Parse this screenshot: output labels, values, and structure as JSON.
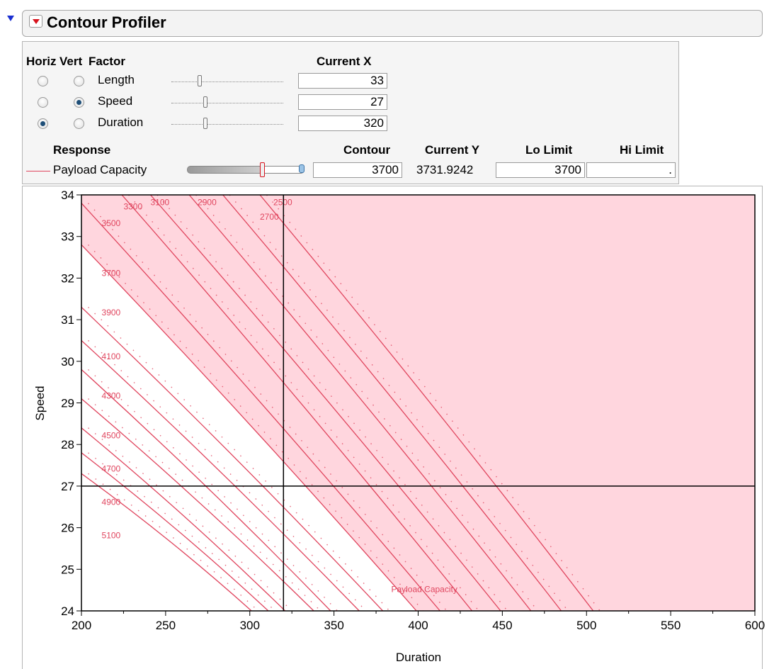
{
  "title": "Contour Profiler",
  "factor_headers": {
    "horiz": "Horiz",
    "vert": "Vert",
    "factor": "Factor",
    "current_x": "Current X"
  },
  "factors": [
    {
      "name": "Length",
      "horiz": false,
      "vert": false,
      "current_x": "33",
      "slider_pos": 0.25
    },
    {
      "name": "Speed",
      "horiz": false,
      "vert": true,
      "current_x": "27",
      "slider_pos": 0.3
    },
    {
      "name": "Duration",
      "horiz": true,
      "vert": false,
      "current_x": "320",
      "slider_pos": 0.3
    }
  ],
  "response_headers": {
    "response": "Response",
    "contour": "Contour",
    "current_y": "Current Y",
    "lo_limit": "Lo Limit",
    "hi_limit": "Hi Limit"
  },
  "response": {
    "name": "Payload Capacity",
    "contour": "3700",
    "current_y": "3731.9242",
    "lo_limit": "3700",
    "hi_limit": ".",
    "slider_pos": 0.67
  },
  "colors": {
    "contour": "#e0455e",
    "shade": "#ffd6de",
    "crosshair": "#000000"
  },
  "icons": {
    "disclosure": "disclosure-triangle-icon",
    "menu": "red-triangle-menu-icon"
  },
  "chart_data": {
    "type": "contour",
    "xlabel": "Duration",
    "ylabel": "Speed",
    "xlim": [
      200,
      600
    ],
    "ylim": [
      24,
      34
    ],
    "xticks": [
      200,
      250,
      300,
      350,
      400,
      450,
      500,
      550,
      600
    ],
    "yticks": [
      24,
      25,
      26,
      27,
      28,
      29,
      30,
      31,
      32,
      33,
      34
    ],
    "crosshair": {
      "x": 320,
      "y": 27
    },
    "shaded_region": "response below 3700 (Lo Limit)",
    "annotation": "Payload Capacity",
    "contour_levels": [
      2500,
      2700,
      2900,
      3100,
      3300,
      3500,
      3700,
      3900,
      4100,
      4300,
      4500,
      4700,
      4900,
      5100
    ],
    "contour_lines": [
      {
        "level": 5100,
        "p0": [
          200,
          27.3
        ],
        "p1": [
          301,
          24
        ]
      },
      {
        "level": 4900,
        "p0": [
          200,
          27.8
        ],
        "p1": [
          311,
          24
        ]
      },
      {
        "level": 4700,
        "p0": [
          200,
          28.4
        ],
        "p1": [
          321,
          24
        ]
      },
      {
        "level": 4500,
        "p0": [
          200,
          29.1
        ],
        "p1": [
          338,
          24
        ]
      },
      {
        "level": 4300,
        "p0": [
          200,
          29.8
        ],
        "p1": [
          348,
          24
        ]
      },
      {
        "level": 4100,
        "p0": [
          200,
          30.5
        ],
        "p1": [
          365,
          24
        ]
      },
      {
        "level": 3900,
        "p0": [
          200,
          31.3
        ],
        "p1": [
          379,
          24
        ]
      },
      {
        "level": 3700,
        "p0": [
          200,
          32.8
        ],
        "p1": [
          399,
          24
        ]
      },
      {
        "level": 3500,
        "p0": [
          200,
          33.8
        ],
        "p1": [
          413,
          24
        ]
      },
      {
        "level": 3300,
        "p0": [
          224,
          34
        ],
        "p1": [
          432,
          24
        ]
      },
      {
        "level": 3100,
        "p0": [
          241,
          34
        ],
        "p1": [
          449,
          24
        ]
      },
      {
        "level": 2900,
        "p0": [
          264,
          34
        ],
        "p1": [
          467,
          24
        ]
      },
      {
        "level": 2700,
        "p0": [
          284,
          34
        ],
        "p1": [
          485,
          24
        ]
      },
      {
        "level": 2500,
        "p0": [
          306,
          34
        ],
        "p1": [
          504,
          24
        ]
      }
    ],
    "level_labels": [
      {
        "text": "3300",
        "x": 225,
        "y": 33.65
      },
      {
        "text": "3100",
        "x": 241,
        "y": 33.75
      },
      {
        "text": "2900",
        "x": 269,
        "y": 33.75
      },
      {
        "text": "2700",
        "x": 306,
        "y": 33.4
      },
      {
        "text": "2500",
        "x": 314,
        "y": 33.75
      },
      {
        "text": "3500",
        "x": 212,
        "y": 33.25
      },
      {
        "text": "3700",
        "x": 212,
        "y": 32.05
      },
      {
        "text": "3900",
        "x": 212,
        "y": 31.1
      },
      {
        "text": "4100",
        "x": 212,
        "y": 30.05
      },
      {
        "text": "4300",
        "x": 212,
        "y": 29.1
      },
      {
        "text": "4500",
        "x": 212,
        "y": 28.15
      },
      {
        "text": "4700",
        "x": 212,
        "y": 27.35
      },
      {
        "text": "4900",
        "x": 212,
        "y": 26.55
      },
      {
        "text": "5100",
        "x": 212,
        "y": 25.75
      }
    ],
    "response_label": {
      "text": "Payload Capacity",
      "x": 384,
      "y": 24.45
    }
  }
}
